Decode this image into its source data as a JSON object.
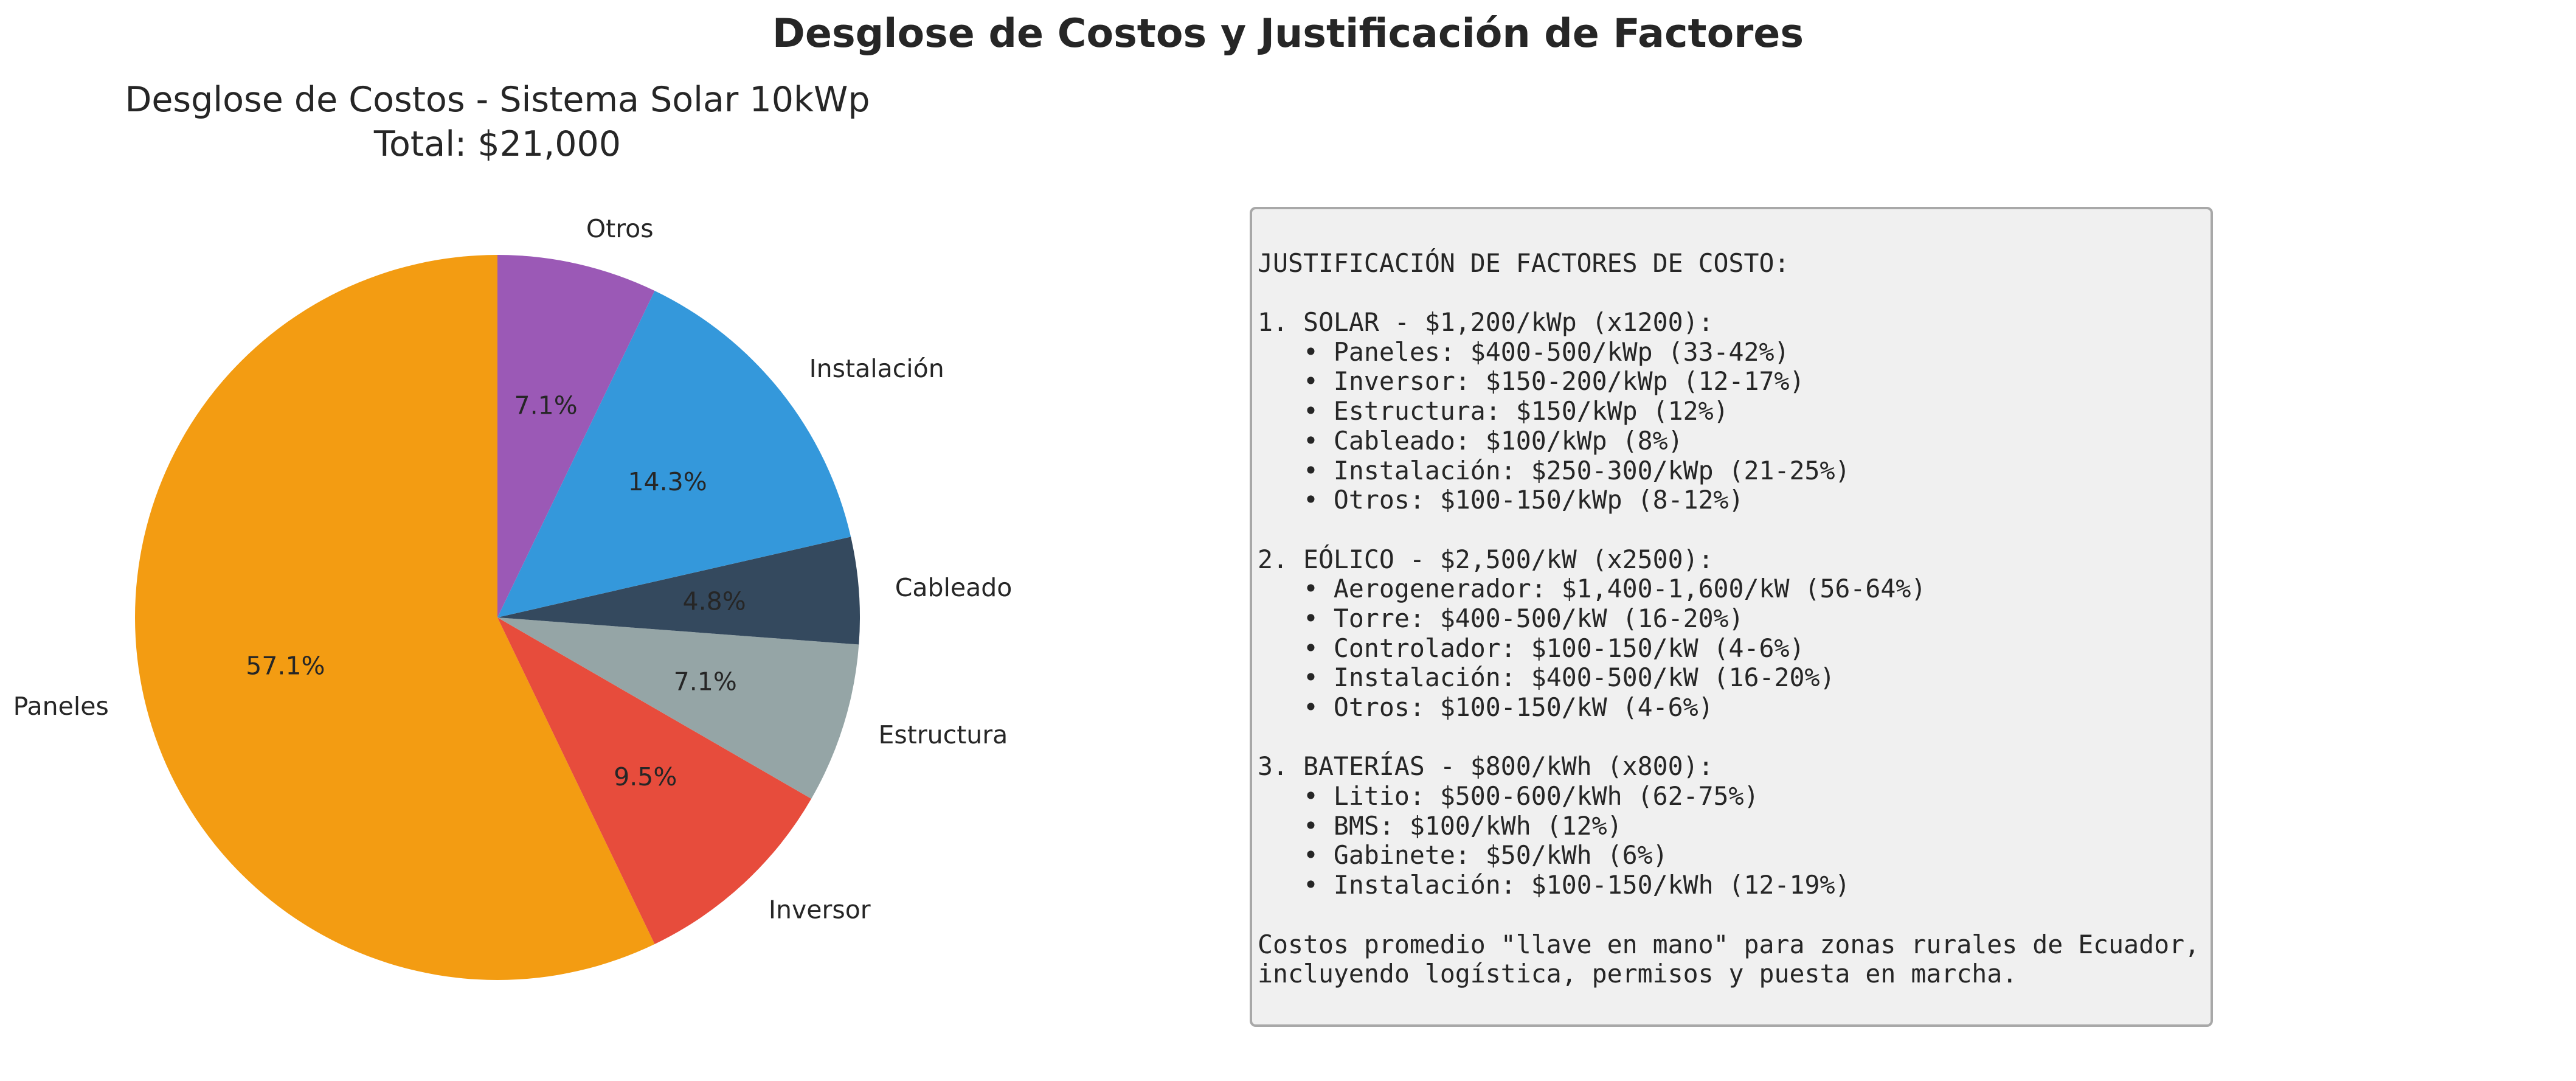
{
  "figure": {
    "suptitle": "Desglose de Costos y Justificación de Factores"
  },
  "chart_data": {
    "type": "pie",
    "title_line1": "Desglose de Costos - Sistema Solar 10kWp",
    "title_line2": "Total: $21,000",
    "start_angle_deg": 90,
    "direction": "counterclockwise",
    "slices": [
      {
        "label": "Paneles",
        "value": 12000,
        "percent": "57.1%",
        "color": "#f39c12"
      },
      {
        "label": "Inversor",
        "value": 2000,
        "percent": "9.5%",
        "color": "#e74c3c"
      },
      {
        "label": "Estructura",
        "value": 1500,
        "percent": "7.1%",
        "color": "#95a5a6"
      },
      {
        "label": "Cableado",
        "value": 1000,
        "percent": "4.8%",
        "color": "#34495e"
      },
      {
        "label": "Instalación",
        "value": 3000,
        "percent": "14.3%",
        "color": "#3498db"
      },
      {
        "label": "Otros",
        "value": 1500,
        "percent": "7.1%",
        "color": "#9b59b6"
      }
    ]
  },
  "justification": {
    "lines": [
      "",
      "JUSTIFICACIÓN DE FACTORES DE COSTO:",
      "",
      "1. SOLAR - $1,200/kWp (x1200):",
      "   • Paneles: $400-500/kWp (33-42%)",
      "   • Inversor: $150-200/kWp (12-17%)",
      "   • Estructura: $150/kWp (12%)",
      "   • Cableado: $100/kWp (8%)",
      "   • Instalación: $250-300/kWp (21-25%)",
      "   • Otros: $100-150/kWp (8-12%)",
      "",
      "2. EÓLICO - $2,500/kW (x2500):",
      "   • Aerogenerador: $1,400-1,600/kW (56-64%)",
      "   • Torre: $400-500/kW (16-20%)",
      "   • Controlador: $100-150/kW (4-6%)",
      "   • Instalación: $400-500/kW (16-20%)",
      "   • Otros: $100-150/kW (4-6%)",
      "",
      "3. BATERÍAS - $800/kWh (x800):",
      "   • Litio: $500-600/kWh (62-75%)",
      "   • BMS: $100/kWh (12%)",
      "   • Gabinete: $50/kWh (6%)",
      "   • Instalación: $100-150/kWh (12-19%)",
      "",
      "Costos promedio \"llave en mano\" para zonas rurales de Ecuador,",
      "incluyendo logística, permisos y puesta en marcha."
    ]
  }
}
